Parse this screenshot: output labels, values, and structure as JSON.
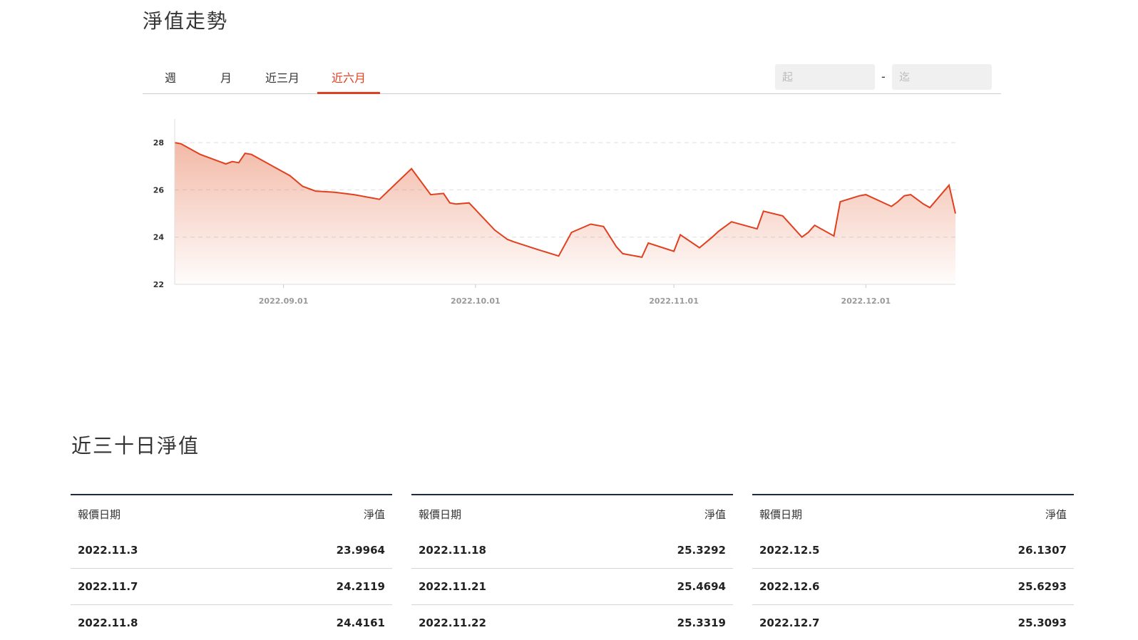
{
  "nav_trend": {
    "title": "淨值走勢",
    "tabs": [
      {
        "label": "週",
        "active": false
      },
      {
        "label": "月",
        "active": false
      },
      {
        "label": "近三月",
        "active": false
      },
      {
        "label": "近六月",
        "active": true
      }
    ],
    "range": {
      "start_placeholder": "起",
      "separator": "-",
      "end_placeholder": "迄"
    },
    "accent_color": "#e0401f"
  },
  "chart_data": {
    "type": "area",
    "title": "",
    "xlabel": "",
    "ylabel": "",
    "x_ticks": [
      "2022.09.01",
      "2022.10.01",
      "2022.11.01",
      "2022.12.01"
    ],
    "x_range": [
      "2022-08-15",
      "2022-12-15"
    ],
    "y_ticks": [
      22,
      24,
      26,
      28
    ],
    "ylim": [
      22,
      29
    ],
    "grid": "horizontal dashed",
    "color": "#e0401f",
    "x": [
      "2022-08-15",
      "2022-08-16",
      "2022-08-19",
      "2022-08-22",
      "2022-08-23",
      "2022-08-24",
      "2022-08-25",
      "2022-08-26",
      "2022-08-27",
      "2022-09-02",
      "2022-09-04",
      "2022-09-06",
      "2022-09-09",
      "2022-09-12",
      "2022-09-15",
      "2022-09-16",
      "2022-09-21",
      "2022-09-24",
      "2022-09-26",
      "2022-09-27",
      "2022-09-28",
      "2022-09-30",
      "2022-10-04",
      "2022-10-06",
      "2022-10-07",
      "2022-10-11",
      "2022-10-14",
      "2022-10-16",
      "2022-10-19",
      "2022-10-21",
      "2022-10-23",
      "2022-10-24",
      "2022-10-27",
      "2022-10-28",
      "2022-11-01",
      "2022-11-02",
      "2022-11-05",
      "2022-11-07",
      "2022-11-08",
      "2022-11-10",
      "2022-11-14",
      "2022-11-15",
      "2022-11-18",
      "2022-11-21",
      "2022-11-22",
      "2022-11-23",
      "2022-11-26",
      "2022-11-27",
      "2022-11-30",
      "2022-12-01",
      "2022-12-05",
      "2022-12-06",
      "2022-12-07",
      "2022-12-08",
      "2022-12-10",
      "2022-12-11",
      "2022-12-14",
      "2022-12-15"
    ],
    "values": [
      28.0,
      27.95,
      27.5,
      27.2,
      27.1,
      27.2,
      27.15,
      27.55,
      27.5,
      26.6,
      26.15,
      25.95,
      25.9,
      25.8,
      25.65,
      25.6,
      26.9,
      25.8,
      25.85,
      25.45,
      25.4,
      25.45,
      24.3,
      23.9,
      23.8,
      23.45,
      23.2,
      24.2,
      24.55,
      24.45,
      23.6,
      23.3,
      23.15,
      23.75,
      23.4,
      24.1,
      23.55,
      24.0,
      24.25,
      24.65,
      24.35,
      25.1,
      24.9,
      24.0,
      24.2,
      24.5,
      24.05,
      25.5,
      25.75,
      25.8,
      25.3,
      25.5,
      25.75,
      25.8,
      25.4,
      25.25,
      26.2,
      25.0
    ]
  },
  "recent30": {
    "title": "近三十日淨值",
    "headers": {
      "date": "報價日期",
      "nav": "淨值"
    },
    "columns": [
      {
        "rows": [
          {
            "date": "2022.11.3",
            "nav": "23.9964"
          },
          {
            "date": "2022.11.7",
            "nav": "24.2119"
          },
          {
            "date": "2022.11.8",
            "nav": "24.4161"
          }
        ]
      },
      {
        "rows": [
          {
            "date": "2022.11.18",
            "nav": "25.3292"
          },
          {
            "date": "2022.11.21",
            "nav": "25.4694"
          },
          {
            "date": "2022.11.22",
            "nav": "25.3319"
          }
        ]
      },
      {
        "rows": [
          {
            "date": "2022.12.5",
            "nav": "26.1307"
          },
          {
            "date": "2022.12.6",
            "nav": "25.6293"
          },
          {
            "date": "2022.12.7",
            "nav": "25.3093"
          }
        ]
      }
    ]
  }
}
